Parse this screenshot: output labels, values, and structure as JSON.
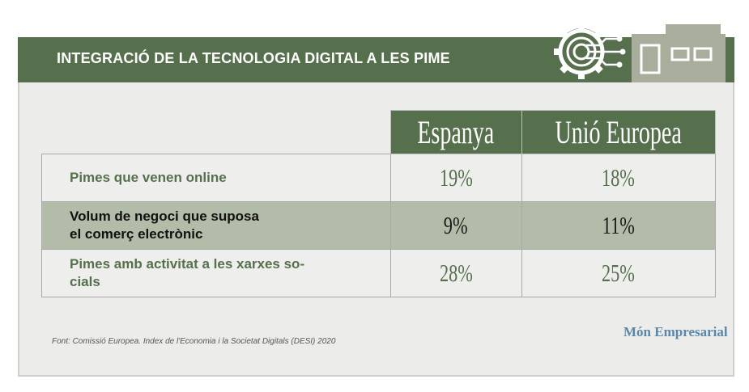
{
  "header": {
    "title": "INTEGRACIÓ DE LA TECNOLOGIA DIGITAL A LES PIME"
  },
  "colors": {
    "green": "#56704d",
    "gray_green": "#b3bca8",
    "building": "#a9ad9c",
    "brand_blue": "#5a87a8"
  },
  "icons": [
    "gear-circuit-icon",
    "factory-building-icon"
  ],
  "chart_data": {
    "type": "table",
    "title": "INTEGRACIÓ DE LA TECNOLOGIA DIGITAL A LES PIME",
    "columns": [
      "Espanya",
      "Unió Europea"
    ],
    "rows": [
      {
        "label_lines": [
          "Pimes que venen online"
        ],
        "values": [
          "19%",
          "18%"
        ]
      },
      {
        "label_lines": [
          "Volum  de negoci que suposa",
          "el comerç electrònic"
        ],
        "values": [
          "9%",
          "11%"
        ]
      },
      {
        "label_lines": [
          "Pimes amb activitat a les xarxes so-",
          "cials"
        ],
        "values": [
          "28%",
          "25%"
        ]
      }
    ],
    "source": "Font: Comissió Europea. Index de l'Economia i la Societat Digitals (DESI) 2020"
  },
  "footer": {
    "brand": "Món Empresarial"
  }
}
